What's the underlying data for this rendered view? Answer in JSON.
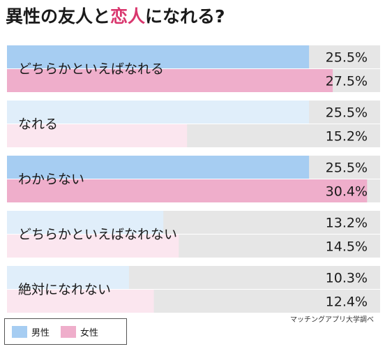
{
  "title": {
    "part1": "異性の友人と",
    "part2": "恋人",
    "part3": "になれる?"
  },
  "colors": {
    "male": "#a6cdf2",
    "female": "#efaecb",
    "male_light": "#e0eefa",
    "female_light": "#fbe6ef",
    "track": "#e6e6e6",
    "title_accent": "#d9376e"
  },
  "chart_data": {
    "type": "bar",
    "orientation": "horizontal",
    "title": "異性の友人と恋人になれる?",
    "categories": [
      "どちらかといえばなれる",
      "なれる",
      "わからない",
      "どちらかといえばなれない",
      "絶対になれない"
    ],
    "series": [
      {
        "name": "男性",
        "values": [
          25.5,
          25.5,
          25.5,
          13.2,
          10.3
        ],
        "labels": [
          "25.5%",
          "25.5%",
          "25.5%",
          "13.2%",
          "10.3%"
        ]
      },
      {
        "name": "女性",
        "values": [
          27.5,
          15.2,
          30.4,
          14.5,
          12.4
        ],
        "labels": [
          "27.5%",
          "15.2%",
          "30.4%",
          "14.5%",
          "12.4%"
        ]
      }
    ],
    "highlight": [
      true,
      false,
      true,
      false,
      false
    ],
    "xlim": [
      0,
      31.5
    ]
  },
  "legend": {
    "male": "男性",
    "female": "女性"
  },
  "source": "マッチングアプリ大学調べ"
}
